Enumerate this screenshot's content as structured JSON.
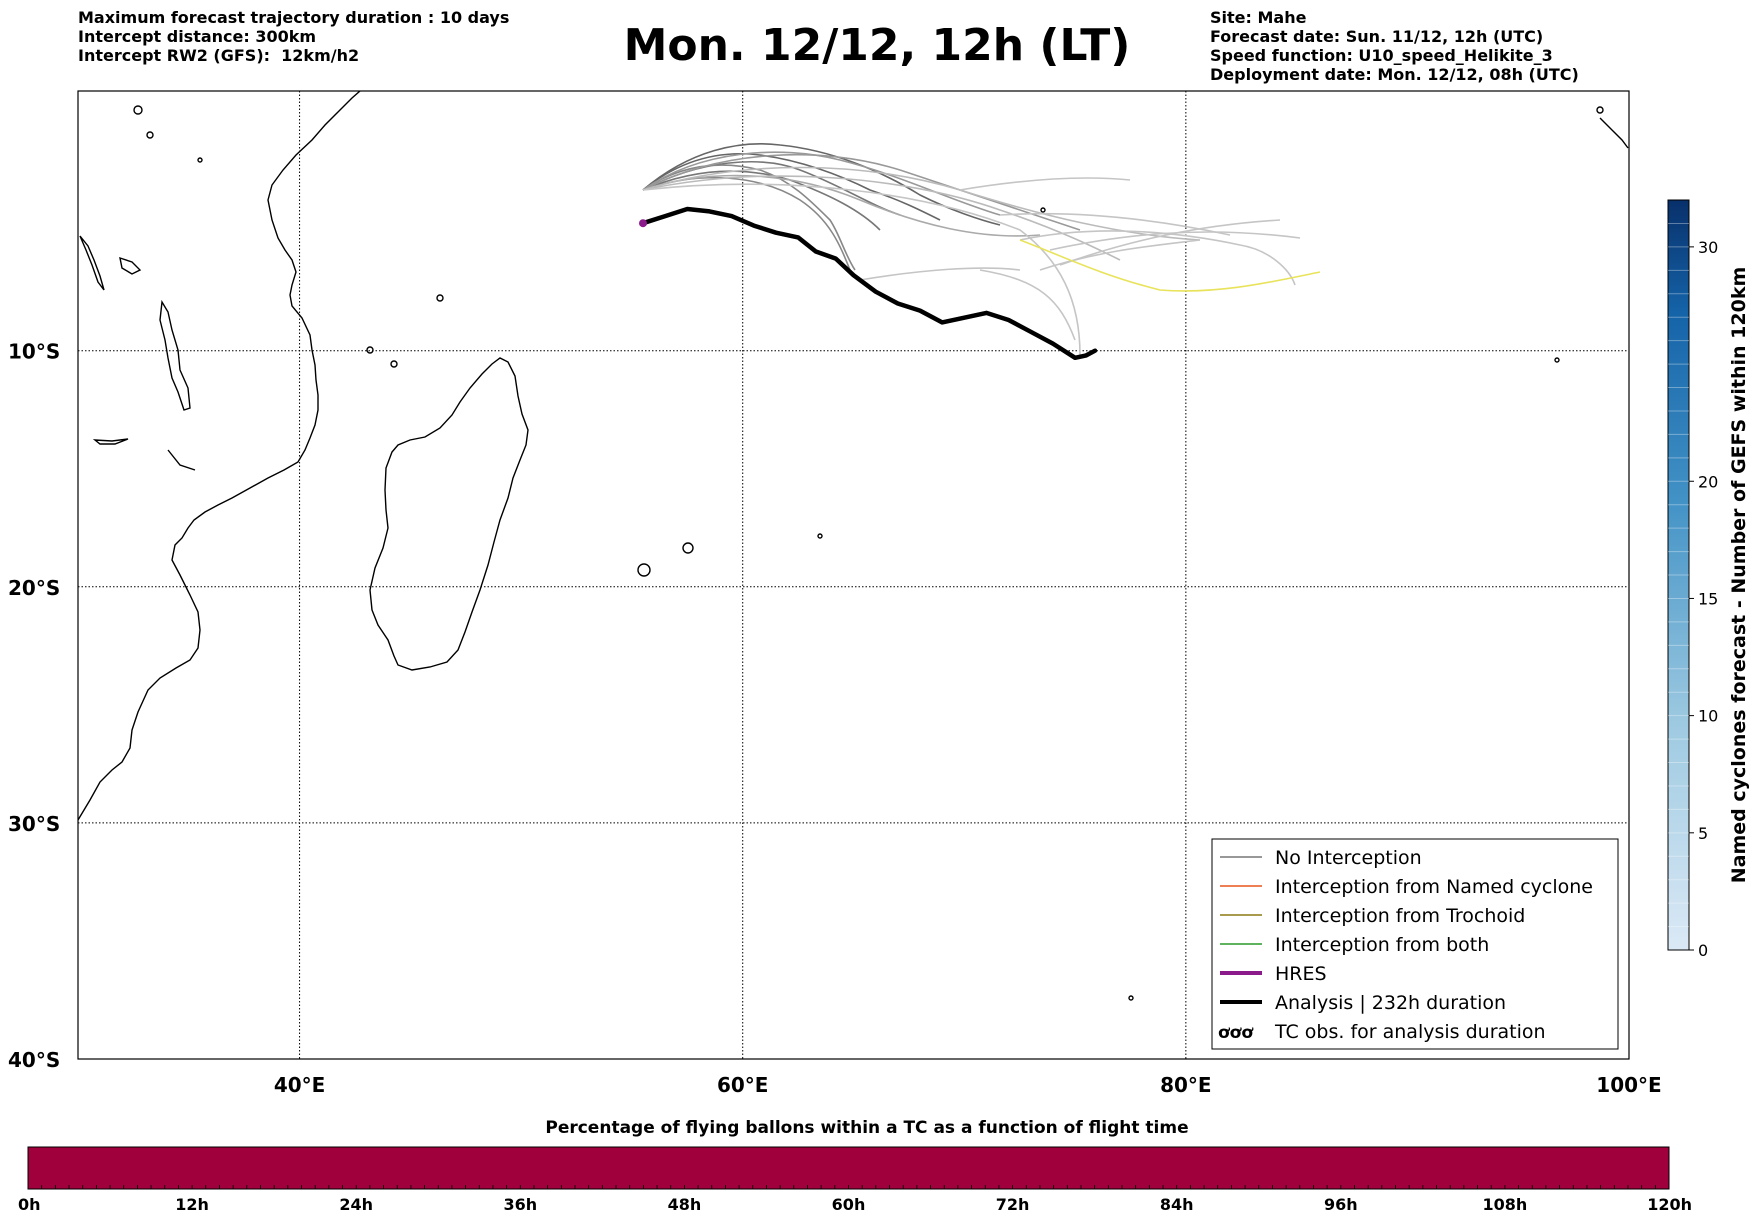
{
  "header_left": [
    "Maximum forecast trajectory duration : 10 days",
    "Intercept distance: 300km",
    "Intercept RW2 (GFS):  12km/h2"
  ],
  "title": "Mon. 12/12, 12h (LT)",
  "header_right": [
    "Site: Mahe",
    "Forecast date: Sun. 11/12, 12h (UTC)",
    "Speed function: U10_speed_Helikite_3",
    "Deployment date: Mon. 12/12, 08h (UTC)"
  ],
  "map": {
    "lon_range": [
      30,
      100
    ],
    "lat_range": [
      -40,
      1
    ],
    "lon_ticks": [
      {
        "v": 40,
        "label": "40°E"
      },
      {
        "v": 60,
        "label": "60°E"
      },
      {
        "v": 80,
        "label": "80°E"
      },
      {
        "v": 100,
        "label": "100°E"
      }
    ],
    "lat_ticks": [
      {
        "v": -10,
        "label": "10°S"
      },
      {
        "v": -20,
        "label": "20°S"
      },
      {
        "v": -30,
        "label": "30°S"
      },
      {
        "v": -40,
        "label": "40°S"
      }
    ],
    "launch_site": {
      "lon": 55.5,
      "lat": -4.6
    },
    "analysis_track": [
      [
        55.5,
        -4.6
      ],
      [
        56.5,
        -4.3
      ],
      [
        57.5,
        -4.0
      ],
      [
        58.5,
        -4.1
      ],
      [
        59.5,
        -4.3
      ],
      [
        60.5,
        -4.7
      ],
      [
        61.5,
        -5.0
      ],
      [
        62.5,
        -5.2
      ],
      [
        63.3,
        -5.8
      ],
      [
        64.2,
        -6.1
      ],
      [
        65,
        -6.8
      ],
      [
        66,
        -7.5
      ],
      [
        67,
        -8.0
      ],
      [
        68,
        -8.3
      ],
      [
        69,
        -8.8
      ],
      [
        70,
        -8.6
      ],
      [
        71,
        -8.4
      ],
      [
        72,
        -8.7
      ],
      [
        73,
        -9.2
      ],
      [
        74,
        -9.7
      ],
      [
        75,
        -10.3
      ],
      [
        75.5,
        -10.2
      ],
      [
        75.9,
        -10.0
      ]
    ],
    "legend": [
      {
        "label": "No Interception",
        "color": "#777777",
        "style": "thin"
      },
      {
        "label": "Interception from Named cyclone",
        "color": "#e8541c",
        "style": "thin"
      },
      {
        "label": "Interception from Trochoid",
        "color": "#8b7a12",
        "style": "thin"
      },
      {
        "label": "Interception from both",
        "color": "#2a9a2a",
        "style": "thin"
      },
      {
        "label": "HRES",
        "color": "#8b1a8b",
        "style": "thick"
      },
      {
        "label": "Analysis | 232h duration",
        "color": "#000000",
        "style": "thick"
      },
      {
        "label": "TC obs. for analysis duration",
        "color": "#000000",
        "style": "symbol"
      }
    ]
  },
  "colorbar_right": {
    "label": "Named cyclones forecast - Number of GEFS within 120km",
    "ticks": [
      {
        "v": 0,
        "label": "0"
      },
      {
        "v": 5,
        "label": "5"
      },
      {
        "v": 10,
        "label": "10"
      },
      {
        "v": 15,
        "label": "15"
      },
      {
        "v": 20,
        "label": "20"
      },
      {
        "v": 30,
        "label": "30"
      }
    ],
    "max": 32
  },
  "bottom_bar": {
    "title": "Percentage of flying ballons within a TC as a function of flight time",
    "color": "#a0003c",
    "ticks": [
      "0h",
      "12h",
      "24h",
      "36h",
      "48h",
      "60h",
      "72h",
      "84h",
      "96h",
      "108h",
      "120h"
    ]
  },
  "symbol_glyph": "ơơơ"
}
